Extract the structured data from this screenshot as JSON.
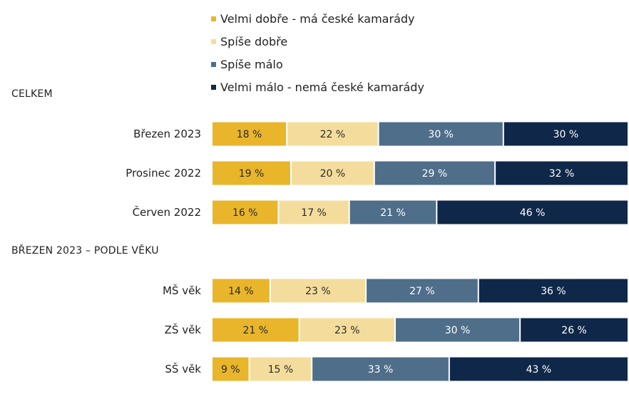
{
  "chart_data": {
    "type": "bar",
    "orientation": "horizontal",
    "stacked": true,
    "normalized_to_percent": true,
    "legend_position": "top",
    "series": [
      {
        "name": "Velmi dobře - má české kamarády",
        "color": "#e9b52b"
      },
      {
        "name": "Spíše dobře",
        "color": "#f4dd9c"
      },
      {
        "name": "Spíše málo",
        "color": "#4e6e8a"
      },
      {
        "name": "Velmi málo - nemá české kamarády",
        "color": "#0f2748"
      }
    ],
    "groups": [
      {
        "title": "CELKEM",
        "rows": [
          {
            "label": "Březen 2023",
            "values": [
              18,
              22,
              30,
              30
            ],
            "value_labels": [
              "18 %",
              "22 %",
              "30 %",
              "30 %"
            ]
          },
          {
            "label": "Prosinec 2022",
            "values": [
              19,
              20,
              29,
              32
            ],
            "value_labels": [
              "19 %",
              "20 %",
              "29 %",
              "32 %"
            ]
          },
          {
            "label": "Červen 2022",
            "values": [
              16,
              17,
              21,
              46
            ],
            "value_labels": [
              "16 %",
              "17 %",
              "21 %",
              "46 %"
            ]
          }
        ]
      },
      {
        "title": "BŘEZEN 2023 – PODLE VĚKU",
        "rows": [
          {
            "label": "MŠ věk",
            "values": [
              14,
              23,
              27,
              36
            ],
            "value_labels": [
              "14 %",
              "23 %",
              "27 %",
              "36 %"
            ]
          },
          {
            "label": "ZŠ věk",
            "values": [
              21,
              23,
              30,
              26
            ],
            "value_labels": [
              "21 %",
              "23 %",
              "30 %",
              "26 %"
            ]
          },
          {
            "label": "SŠ věk",
            "values": [
              9,
              15,
              33,
              43
            ],
            "value_labels": [
              "9 %",
              "15 %",
              "33 %",
              "43 %"
            ]
          }
        ]
      }
    ]
  }
}
